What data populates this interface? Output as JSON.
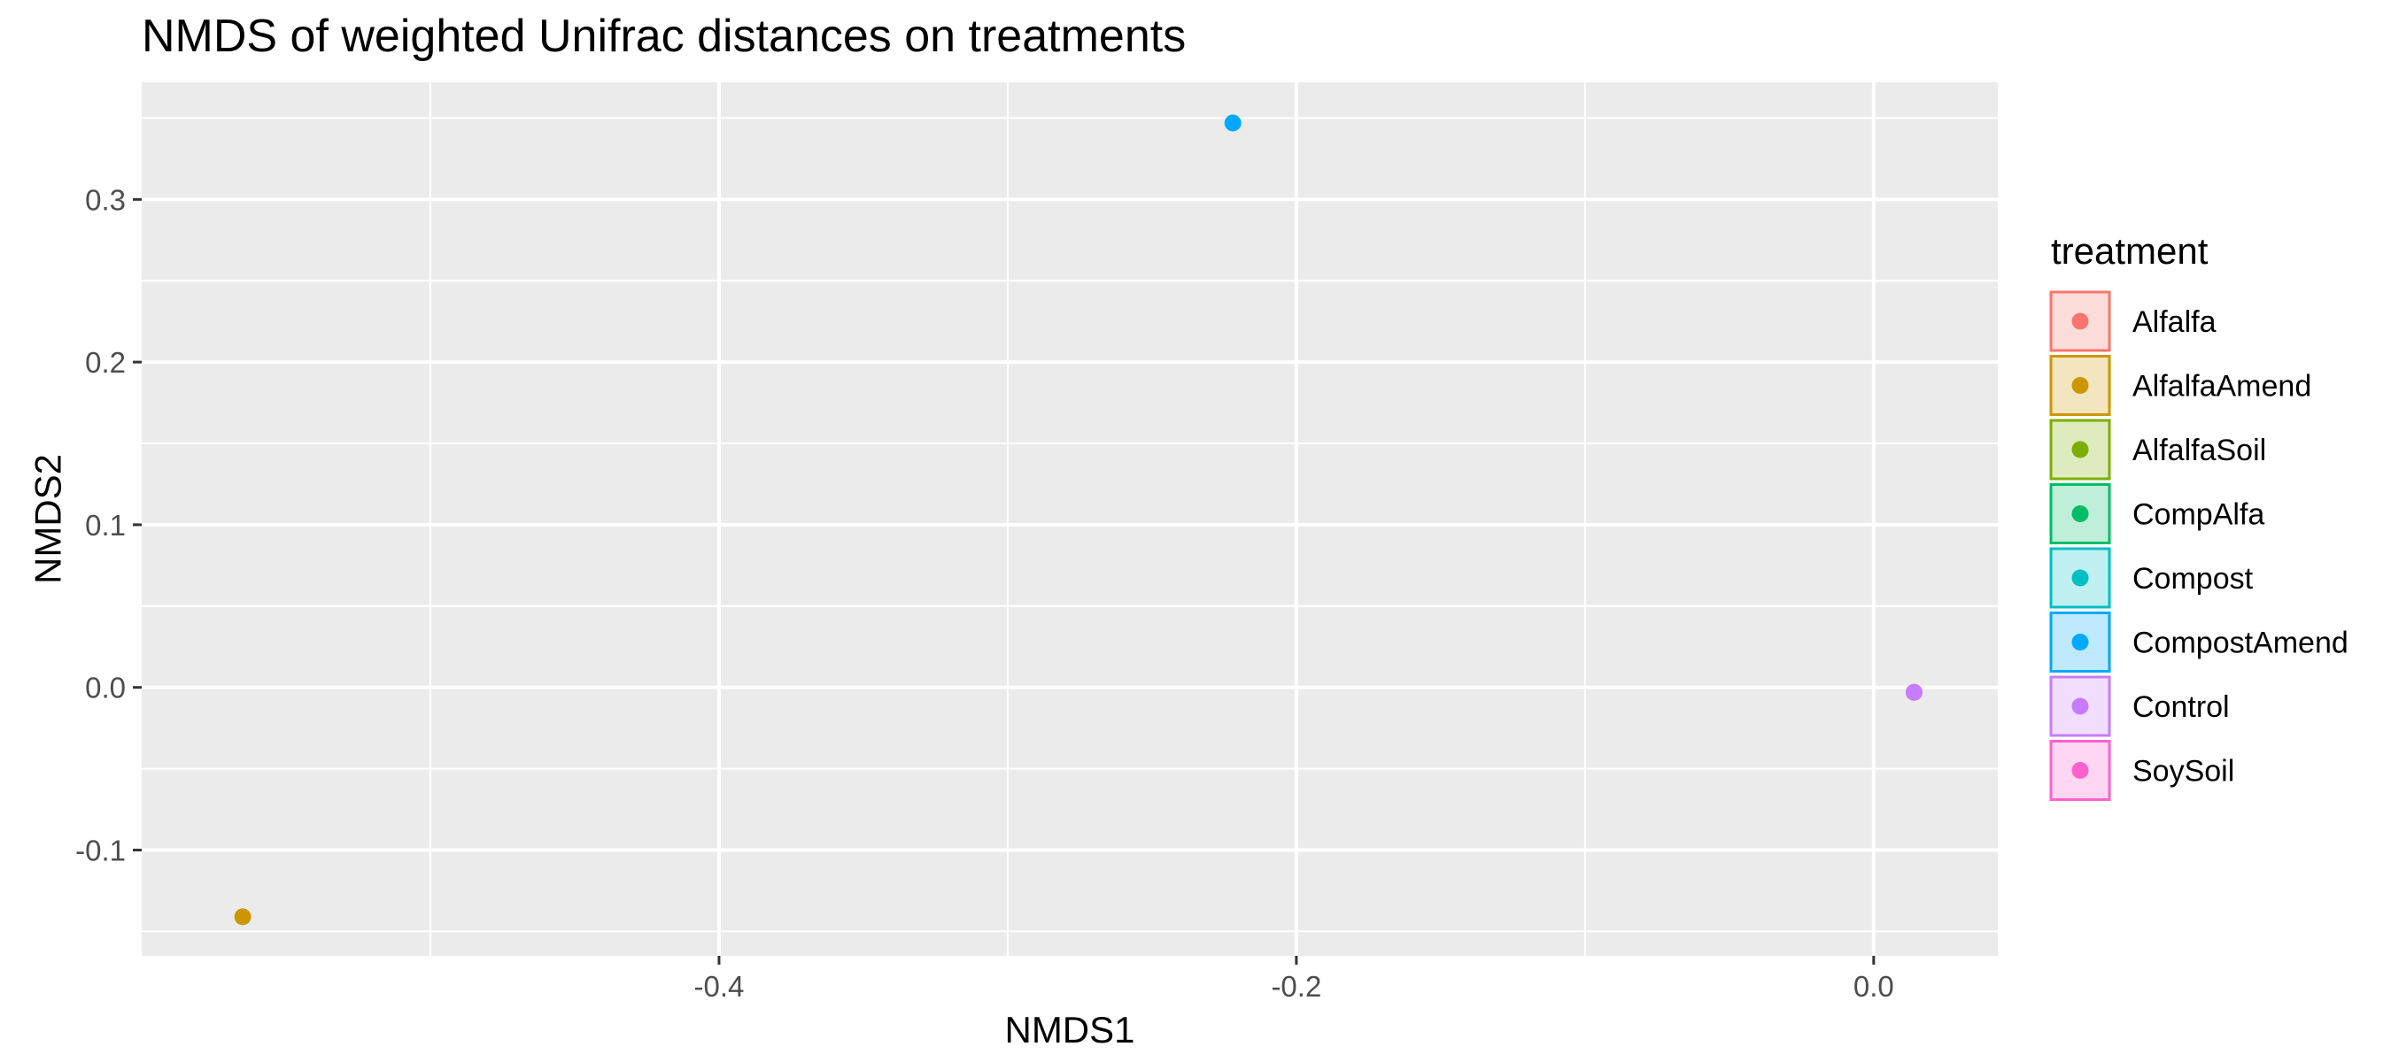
{
  "chart_data": {
    "type": "scatter",
    "title": "NMDS of weighted Unifrac distances on treatments",
    "xlabel": "NMDS1",
    "ylabel": "NMDS2",
    "xlim": [
      -0.6,
      0.043
    ],
    "ylim": [
      -0.165,
      0.372
    ],
    "xticks": [
      -0.4,
      -0.2,
      0.0
    ],
    "xtick_labels": [
      "-0.4",
      "-0.2",
      "0.0"
    ],
    "yticks": [
      -0.1,
      0.0,
      0.1,
      0.2,
      0.3
    ],
    "ytick_labels": [
      "-0.1",
      "0.0",
      "0.1",
      "0.2",
      "0.3"
    ],
    "grid": true,
    "legend": {
      "title": "treatment",
      "placement": "right",
      "entries": [
        {
          "label": "Alfalfa",
          "color": "#F8766D"
        },
        {
          "label": "AlfalfaAmend",
          "color": "#CD9600"
        },
        {
          "label": "AlfalfaSoil",
          "color": "#7CAE00"
        },
        {
          "label": "CompAlfa",
          "color": "#00BE67"
        },
        {
          "label": "Compost",
          "color": "#00BFC4"
        },
        {
          "label": "CompostAmend",
          "color": "#00A9FF"
        },
        {
          "label": "Control",
          "color": "#C77CFF"
        },
        {
          "label": "SoySoil",
          "color": "#FF61CC"
        }
      ]
    },
    "points": [
      {
        "treatment": "AlfalfaAmend",
        "x": -0.565,
        "y": -0.141,
        "color": "#CD9600"
      },
      {
        "treatment": "CompostAmend",
        "x": -0.222,
        "y": 0.347,
        "color": "#00A9FF"
      },
      {
        "treatment": "Alfalfa",
        "x": 0.014,
        "y": -0.003,
        "color": "#F8766D"
      },
      {
        "treatment": "SoySoil",
        "x": 0.014,
        "y": -0.003,
        "color": "#FF61CC"
      },
      {
        "treatment": "Control",
        "x": 0.014,
        "y": -0.003,
        "color": "#C77CFF"
      }
    ]
  }
}
